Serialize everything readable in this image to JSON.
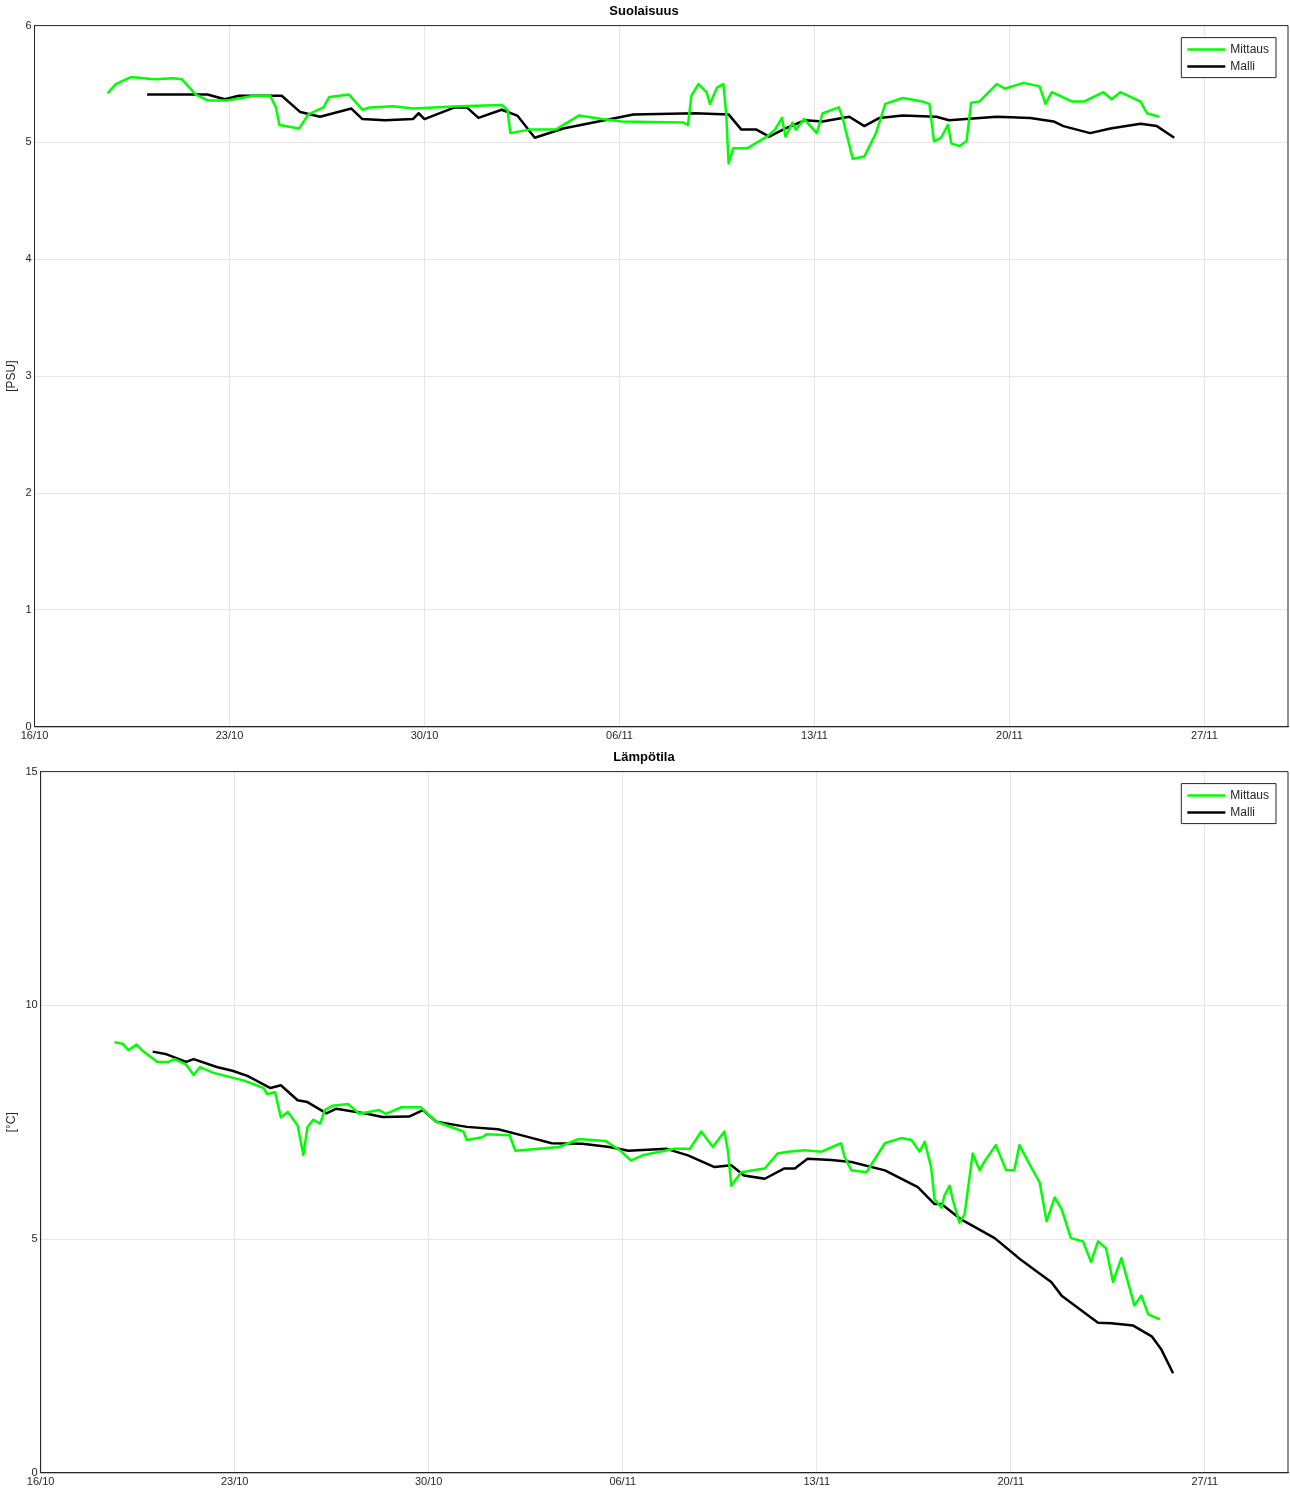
{
  "chart_data": [
    {
      "type": "line",
      "title": "Suolaisuus",
      "ylabel": "[PSU]",
      "xlim": [
        "--10-16",
        "--11-30"
      ],
      "xticks": [
        {
          "value": "--10-16",
          "label": "16/10"
        },
        {
          "value": "--10-23",
          "label": "23/10"
        },
        {
          "value": "--10-30",
          "label": "30/10"
        },
        {
          "value": "--11-06",
          "label": "06/11"
        },
        {
          "value": "--11-13",
          "label": "13/11"
        },
        {
          "value": "--11-20",
          "label": "20/11"
        },
        {
          "value": "--11-27",
          "label": "27/11"
        }
      ],
      "ylim": [
        0,
        6
      ],
      "yticks": [
        0,
        1,
        2,
        3,
        4,
        5,
        6
      ],
      "grid": true,
      "legend": "top right",
      "marker": "none",
      "line_style": "solid",
      "series": [
        {
          "name": "Mittaus",
          "color": "#00ff00",
          "x": [
            "--10-18T15:00",
            "--10-18T22:00",
            "--10-19T11:00",
            "--10-20T07:00",
            "--10-20T23:30",
            "--10-21T07:00",
            "--10-21T19:00",
            "--10-22T05:00",
            "--10-22T22:00",
            "--10-23T21:00",
            "--10-24T11:00",
            "--10-24T16:00",
            "--10-24T19:00",
            "--10-25T12:00",
            "--10-25T20:00",
            "--10-26T09:00",
            "--10-26T14:00",
            "--10-27T07:00",
            "--10-27T18:30",
            "--10-28T01:00",
            "--10-28T21:00",
            "--10-29T14:00",
            "--10-31T05:30",
            "--11-01T18:30",
            "--11-01T23:30",
            "--11-02T02:00",
            "--11-02T18:00",
            "--11-03T17:00",
            "--11-04T13:00",
            "--11-05T09:00",
            "--11-06T02:00",
            "--11-08T07:00",
            "--11-08T11:00",
            "--11-08T14:00",
            "--11-08T20:00",
            "--11-09T03:00",
            "--11-09T06:00",
            "--11-09T12:00",
            "--11-09T17:30",
            "--11-09T20:00",
            "--11-09T22:00",
            "--11-10T02:00",
            "--11-10T14:00",
            "--11-11T07:00",
            "--11-11T14:00",
            "--11-11T20:00",
            "--11-11T23:00",
            "--11-12T05:00",
            "--11-12T08:00",
            "--11-12T15:00",
            "--11-13T02:00",
            "--11-13T07:00",
            "--11-13T21:00",
            "--11-14T00:00",
            "--11-14T09:00",
            "--11-14T19:00",
            "--11-15T05:00",
            "--11-15T13:00",
            "--11-16T04:00",
            "--11-16T21:00",
            "--11-17T03:00",
            "--11-17T07:00",
            "--11-17T13:00",
            "--11-17T19:00",
            "--11-17T22:00",
            "--11-18T05:00",
            "--11-18T11:00",
            "--11-18T15:00",
            "--11-18T22:00",
            "--11-19T13:00",
            "--11-19T20:00",
            "--11-20T12:00",
            "--11-21T02:00",
            "--11-21T07:00",
            "--11-21T12:30",
            "--11-22T06:00",
            "--11-22T16:00",
            "--11-23T09:00",
            "--11-23T16:00",
            "--11-23T23:30",
            "--11-24T17:00",
            "--11-24T22:30",
            "--11-25T09:00"
          ],
          "values": [
            5.42,
            5.5,
            5.56,
            5.54,
            5.55,
            5.54,
            5.41,
            5.36,
            5.36,
            5.4,
            5.4,
            5.3,
            5.15,
            5.12,
            5.24,
            5.3,
            5.39,
            5.41,
            5.28,
            5.3,
            5.31,
            5.29,
            5.31,
            5.32,
            5.28,
            5.08,
            5.11,
            5.11,
            5.23,
            5.2,
            5.18,
            5.17,
            5.15,
            5.4,
            5.5,
            5.43,
            5.33,
            5.47,
            5.5,
            5.24,
            4.82,
            4.95,
            4.95,
            5.05,
            5.11,
            5.21,
            5.05,
            5.17,
            5.11,
            5.2,
            5.08,
            5.25,
            5.3,
            5.22,
            4.86,
            4.88,
            5.08,
            5.33,
            5.38,
            5.35,
            5.33,
            5.01,
            5.04,
            5.15,
            4.99,
            4.97,
            5.01,
            5.34,
            5.35,
            5.5,
            5.46,
            5.51,
            5.48,
            5.33,
            5.43,
            5.35,
            5.35,
            5.43,
            5.37,
            5.43,
            5.35,
            5.25,
            5.22
          ]
        },
        {
          "name": "Malli",
          "color": "#000000",
          "x": [
            "--10-20T01:00",
            "--10-22T05:00",
            "--10-22T20:00",
            "--10-23T08:00",
            "--10-24T21:00",
            "--10-25T13:00",
            "--10-26T06:00",
            "--10-27T09:00",
            "--10-27T18:30",
            "--10-28T14:00",
            "--10-29T14:00",
            "--10-29T19:00",
            "--10-30T00:00",
            "--10-31T02:00",
            "--10-31T12:30",
            "--10-31T22:30",
            "--11-01T18:30",
            "--11-02T08:00",
            "--11-02T23:00",
            "--11-03T23:30",
            "--11-06T12:00",
            "--11-08T17:00",
            "--11-09T22:00",
            "--11-10T09:00",
            "--11-10T22:00",
            "--11-11T09:00",
            "--11-11T23:00",
            "--11-12T16:00",
            "--11-13T07:00",
            "--11-14T06:00",
            "--11-14T19:00",
            "--11-15T08:00",
            "--11-16T04:00",
            "--11-17T09:00",
            "--11-17T20:00",
            "--11-19T13:00",
            "--11-20T18:00",
            "--11-21T14:00",
            "--11-21T22:30",
            "--11-22T21:30",
            "--11-23T15:00",
            "--11-24T17:00",
            "--11-25T07:00",
            "--11-25T22:00"
          ],
          "values": [
            5.41,
            5.41,
            5.37,
            5.4,
            5.4,
            5.26,
            5.22,
            5.29,
            5.2,
            5.19,
            5.2,
            5.25,
            5.2,
            5.3,
            5.3,
            5.21,
            5.28,
            5.23,
            5.04,
            5.12,
            5.24,
            5.25,
            5.24,
            5.11,
            5.11,
            5.05,
            5.12,
            5.19,
            5.18,
            5.22,
            5.14,
            5.21,
            5.23,
            5.22,
            5.19,
            5.22,
            5.21,
            5.18,
            5.14,
            5.08,
            5.12,
            5.16,
            5.14,
            5.04
          ]
        }
      ]
    },
    {
      "type": "line",
      "title": "Lämpötila",
      "ylabel": "[°C]",
      "xlim": [
        "--10-16",
        "--11-30"
      ],
      "xticks": [
        {
          "value": "--10-16",
          "label": "16/10"
        },
        {
          "value": "--10-23",
          "label": "23/10"
        },
        {
          "value": "--10-30",
          "label": "30/10"
        },
        {
          "value": "--11-06",
          "label": "06/11"
        },
        {
          "value": "--11-13",
          "label": "13/11"
        },
        {
          "value": "--11-20",
          "label": "20/11"
        },
        {
          "value": "--11-27",
          "label": "27/11"
        }
      ],
      "ylim": [
        0,
        15
      ],
      "yticks": [
        0,
        5,
        10,
        15
      ],
      "grid": true,
      "legend": "top right",
      "marker": "none",
      "line_style": "solid",
      "series": [
        {
          "name": "Mittaus",
          "color": "#00ff00",
          "x": [
            "--10-18T16:00",
            "--10-18T23:00",
            "--10-19T04:00",
            "--10-19T11:00",
            "--10-19T17:00",
            "--10-20T05:00",
            "--10-20T15:00",
            "--10-20T20:00",
            "--10-21T06:00",
            "--10-21T12:30",
            "--10-21T18:00",
            "--10-22T05:00",
            "--10-23T08:00",
            "--10-24T01:00",
            "--10-24T04:00",
            "--10-24T11:00",
            "--10-24T16:00",
            "--10-24T22:00",
            "--10-25T06:30",
            "--10-25T11:30",
            "--10-25T15:00",
            "--10-25T20:00",
            "--10-26T02:00",
            "--10-26T06:00",
            "--10-26T12:30",
            "--10-27T02:00",
            "--10-27T12:00",
            "--10-28T05:00",
            "--10-28T11:00",
            "--10-29T00:30",
            "--10-29T17:00",
            "--10-30T06:30",
            "--10-31T06:00",
            "--10-31T09:00",
            "--10-31T22:30",
            "--11-01T02:00",
            "--11-01T22:00",
            "--11-02T03:00",
            "--11-03T17:00",
            "--11-04T10:00",
            "--11-05T09:00",
            "--11-05T22:00",
            "--11-06T07:00",
            "--11-06T18:00",
            "--11-07T21:00",
            "--11-08T10:00",
            "--11-08T20:00",
            "--11-09T06:00",
            "--11-09T16:00",
            "--11-09T19:00",
            "--11-09T22:00",
            "--11-10T06:30",
            "--11-11T03:00",
            "--11-11T14:00",
            "--11-11T23:00",
            "--11-12T13:30",
            "--11-13T04:00",
            "--11-13T21:00",
            "--11-14T00:00",
            "--11-14T06:00",
            "--11-14T19:00",
            "--11-15T11:00",
            "--11-16T01:00",
            "--11-16T10:00",
            "--11-16T17:00",
            "--11-16T21:30",
            "--11-17T03:00",
            "--11-17T06:00",
            "--11-17T12:00",
            "--11-17T14:30",
            "--11-17T19:00",
            "--11-17T22:00",
            "--11-18T03:30",
            "--11-18T08:00",
            "--11-18T15:00",
            "--11-18T21:00",
            "--11-19T01:00",
            "--11-19T11:00",
            "--11-19T20:00",
            "--11-20T03:00",
            "--11-20T07:30",
            "--11-20T16:00",
            "--11-21T01:00",
            "--11-21T07:00",
            "--11-21T14:00",
            "--11-21T20:00",
            "--11-22T04:00",
            "--11-22T14:30",
            "--11-22T21:30",
            "--11-23T03:30",
            "--11-23T10:30",
            "--11-23T16:30",
            "--11-23T23:45",
            "--11-24T11:00",
            "--11-24T17:00",
            "--11-24T23:00",
            "--11-25T09:00"
          ],
          "values": [
            9.21,
            9.18,
            9.04,
            9.16,
            9.01,
            8.79,
            8.79,
            8.85,
            8.73,
            8.51,
            8.68,
            8.56,
            8.39,
            8.23,
            8.1,
            8.14,
            7.6,
            7.72,
            7.43,
            6.8,
            7.39,
            7.55,
            7.47,
            7.76,
            7.85,
            7.89,
            7.68,
            7.76,
            7.68,
            7.82,
            7.82,
            7.51,
            7.3,
            7.12,
            7.18,
            7.24,
            7.22,
            6.89,
            6.97,
            7.14,
            7.1,
            6.89,
            6.68,
            6.8,
            6.93,
            6.93,
            7.3,
            6.97,
            7.3,
            6.9,
            6.14,
            6.43,
            6.51,
            6.83,
            6.87,
            6.9,
            6.87,
            7.05,
            6.76,
            6.47,
            6.43,
            7.05,
            7.16,
            7.12,
            6.87,
            7.08,
            6.54,
            5.85,
            5.67,
            5.93,
            6.14,
            5.82,
            5.35,
            5.53,
            6.83,
            6.47,
            6.65,
            7.01,
            6.47,
            6.47,
            7.01,
            6.61,
            6.21,
            5.38,
            5.89,
            5.64,
            5.02,
            4.95,
            4.51,
            4.95,
            4.8,
            4.08,
            4.59,
            3.58,
            3.79,
            3.39,
            3.28
          ]
        },
        {
          "name": "Malli",
          "color": "#000000",
          "x": [
            "--10-20T01:00",
            "--10-20T12:00",
            "--10-21T06:00",
            "--10-21T12:30",
            "--10-22T08:30",
            "--10-22T22:00",
            "--10-23T11:00",
            "--10-24T07:00",
            "--10-24T16:00",
            "--10-25T06:30",
            "--10-25T15:00",
            "--10-26T07:30",
            "--10-26T16:00",
            "--10-27T18:30",
            "--10-28T08:00",
            "--10-29T07:00",
            "--10-29T19:00",
            "--10-30T06:30",
            "--10-31T09:00",
            "--11-01T12:00",
            "--11-02T14:30",
            "--11-03T10:30",
            "--11-04T13:00",
            "--11-05T12:30",
            "--11-06T05:00",
            "--11-07T14:00",
            "--11-08T08:30",
            "--11-09T07:30",
            "--11-09T22:00",
            "--11-10T09:00",
            "--11-11T03:00",
            "--11-11T20:00",
            "--11-12T05:00",
            "--11-12T16:00",
            "--11-13T12:30",
            "--11-14T06:00",
            "--11-15T11:00",
            "--11-16T15:30",
            "--11-17T06:00",
            "--11-17T12:00",
            "--11-18T05:00",
            "--11-19T10:00",
            "--11-20T09:00",
            "--11-21T11:00",
            "--11-21T20:00",
            "--11-23T03:30",
            "--11-23T15:00",
            "--11-24T10:00",
            "--11-25T02:00",
            "--11-25T10:30",
            "--11-25T20:30"
          ],
          "values": [
            9.01,
            8.96,
            8.79,
            8.85,
            8.68,
            8.6,
            8.49,
            8.23,
            8.29,
            7.97,
            7.93,
            7.69,
            7.79,
            7.68,
            7.61,
            7.62,
            7.76,
            7.51,
            7.4,
            7.35,
            7.18,
            7.05,
            7.04,
            6.97,
            6.89,
            6.93,
            6.79,
            6.54,
            6.58,
            6.36,
            6.29,
            6.51,
            6.51,
            6.72,
            6.69,
            6.65,
            6.47,
            6.11,
            5.75,
            5.75,
            5.42,
            5.02,
            4.55,
            4.08,
            3.79,
            3.21,
            3.2,
            3.15,
            2.92,
            2.63,
            2.13
          ]
        }
      ]
    }
  ]
}
